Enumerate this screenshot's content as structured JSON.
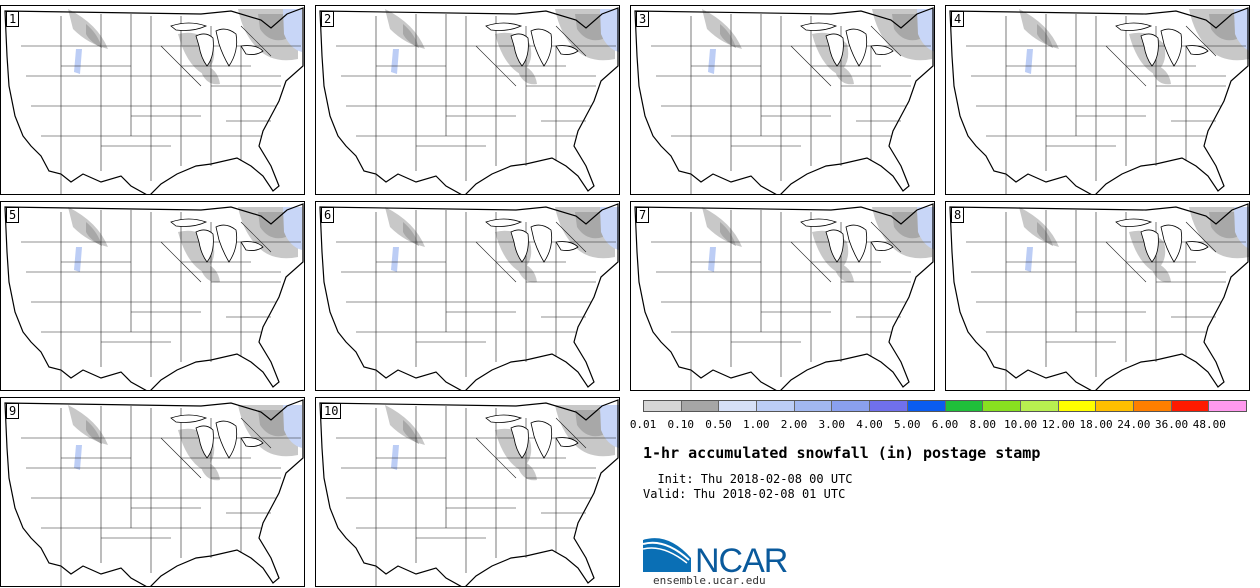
{
  "panels": [
    {
      "label": "1"
    },
    {
      "label": "2"
    },
    {
      "label": "3"
    },
    {
      "label": "4"
    },
    {
      "label": "5"
    },
    {
      "label": "6"
    },
    {
      "label": "7"
    },
    {
      "label": "8"
    },
    {
      "label": "9"
    },
    {
      "label": "10"
    }
  ],
  "colorbar": {
    "colors": [
      "#d6d6d6",
      "#a6a6a6",
      "#d6e0f7",
      "#bccdf5",
      "#a2b8f0",
      "#8aa0ee",
      "#7070ec",
      "#0a5cf0",
      "#1fbf3a",
      "#88e020",
      "#b8f050",
      "#ffff00",
      "#ffbf00",
      "#ff7f00",
      "#ff1a00",
      "#ff99ee"
    ],
    "ticks": [
      "0.01",
      "0.10",
      "0.50",
      "1.00",
      "2.00",
      "3.00",
      "4.00",
      "5.00",
      "6.00",
      "8.00",
      "10.00",
      "12.00",
      "18.00",
      "24.00",
      "36.00",
      "48.00"
    ]
  },
  "title": "1-hr accumulated snowfall (in) postage stamp",
  "init": "  Init: Thu 2018-02-08 00 UTC",
  "valid": "Valid: Thu 2018-02-08 01 UTC",
  "logo": {
    "text": "NCAR",
    "url_text": "ensemble.ucar.edu"
  }
}
